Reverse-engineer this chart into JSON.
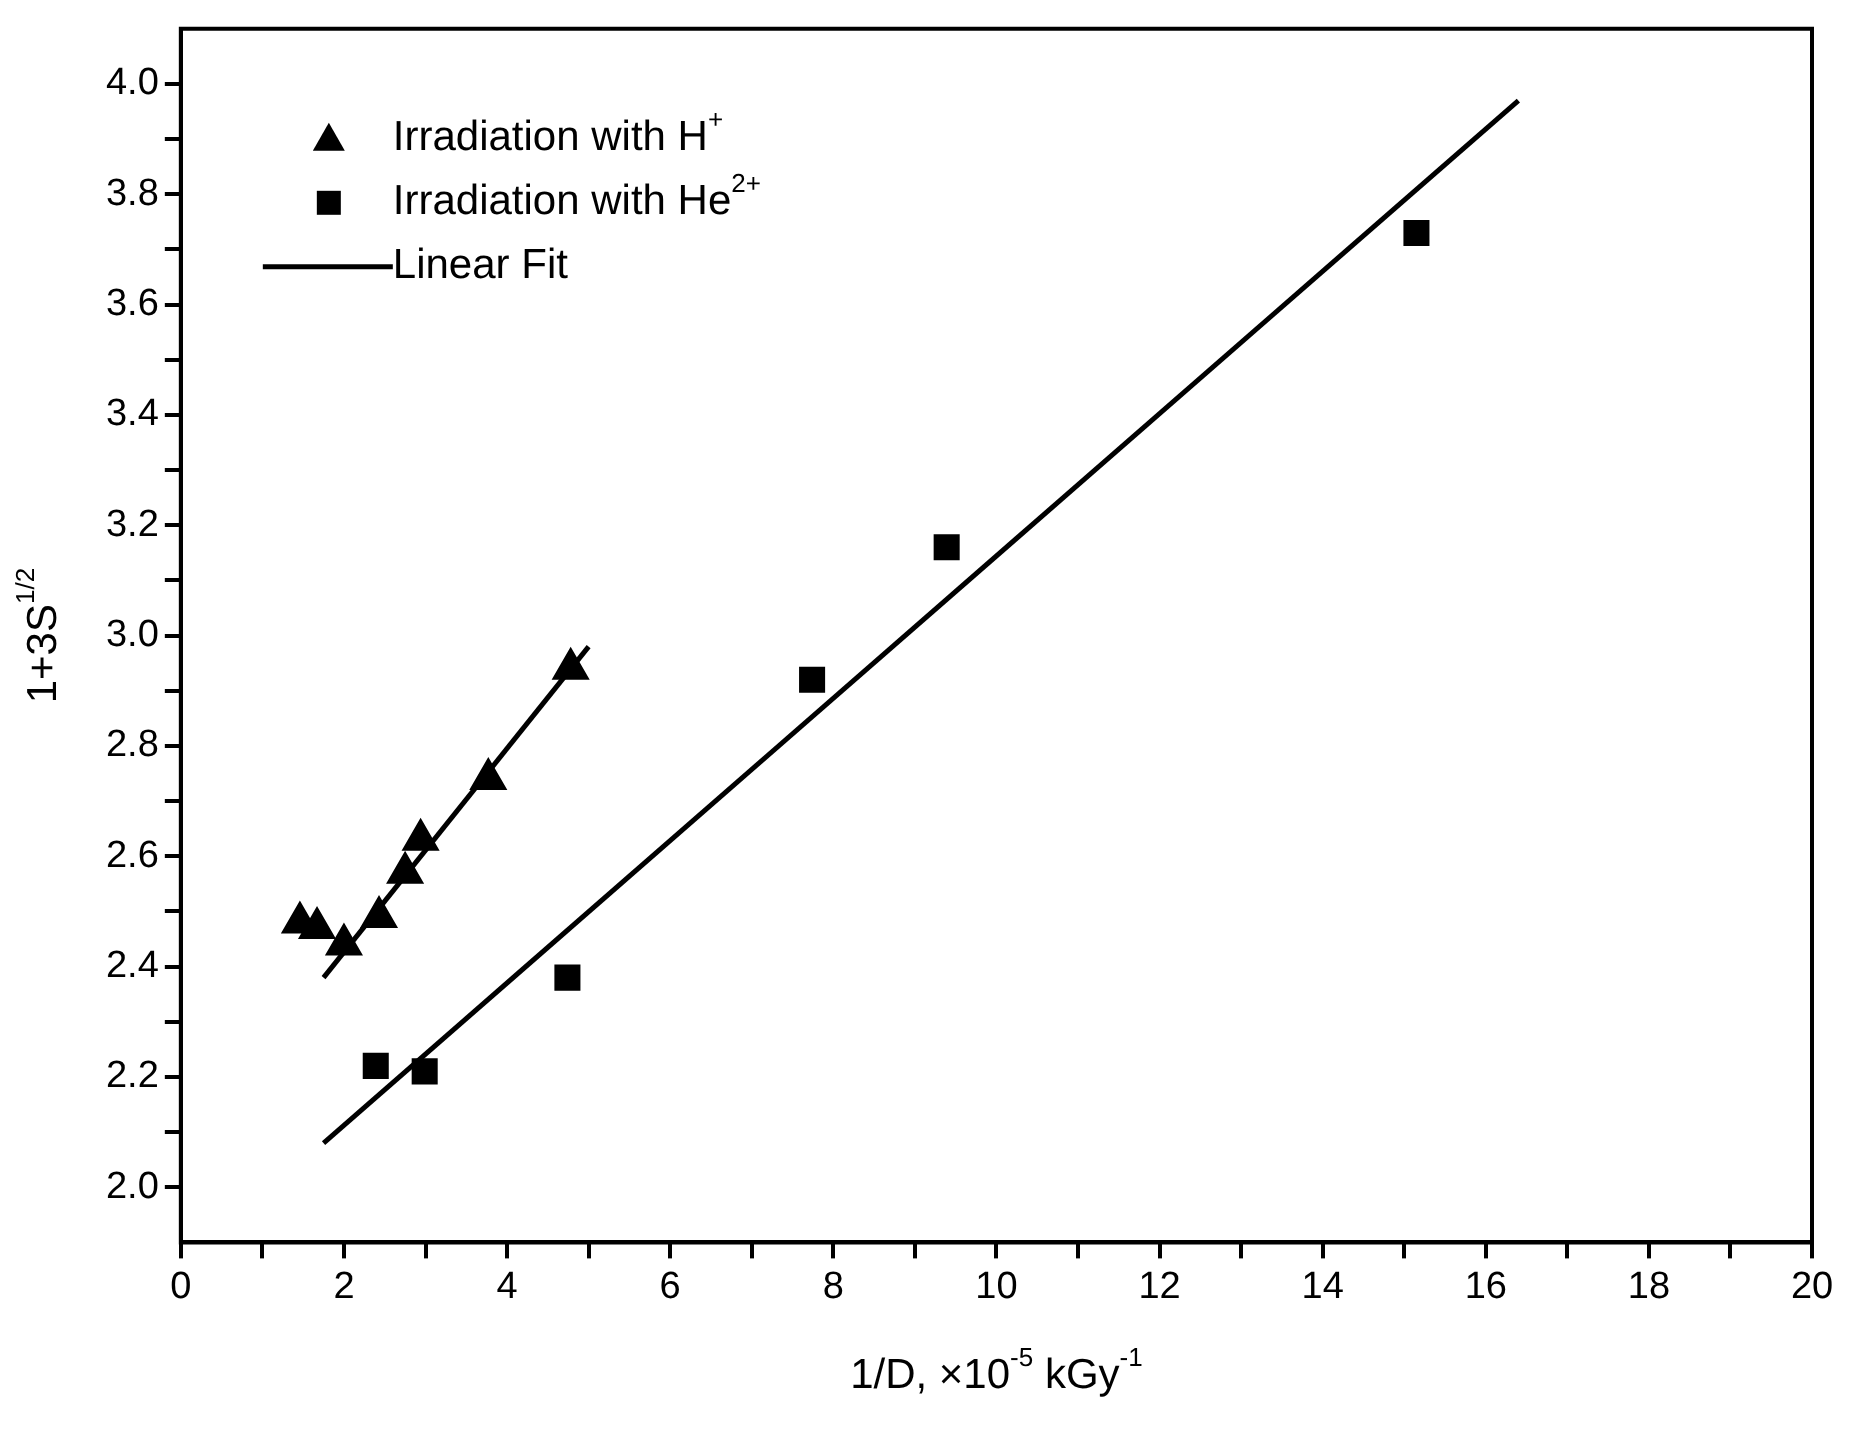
{
  "chart_data": {
    "type": "scatter",
    "xlabel": "1/D, ×10$^{-5}$ kGy$^{-1}$",
    "ylabel": "1+3S$^{1/2}$",
    "xlim": [
      0,
      20
    ],
    "ylim": [
      1.9,
      4.1
    ],
    "xticks": [
      0,
      {
        "value": 1,
        "label": null
      },
      2,
      {
        "value": 3,
        "label": null
      },
      4,
      {
        "value": 5,
        "label": null
      },
      6,
      {
        "value": 7,
        "label": null
      },
      8,
      {
        "value": 9,
        "label": null
      },
      10,
      {
        "value": 11,
        "label": null
      },
      12,
      {
        "value": 13,
        "label": null
      },
      14,
      {
        "value": 15,
        "label": null
      },
      16,
      {
        "value": 17,
        "label": null
      },
      18,
      {
        "value": 19,
        "label": null
      },
      20
    ],
    "yticks": [
      {
        "value": 2,
        "label": "2.0"
      },
      {
        "value": 2.1,
        "label": null
      },
      {
        "value": 2.2,
        "label": "2.2"
      },
      {
        "value": 2.3,
        "label": null
      },
      {
        "value": 2.4,
        "label": "2.4"
      },
      {
        "value": 2.5,
        "label": null
      },
      {
        "value": 2.6,
        "label": "2.6"
      },
      {
        "value": 2.7,
        "label": null
      },
      {
        "value": 2.8,
        "label": "2.8"
      },
      {
        "value": 2.9,
        "label": null
      },
      {
        "value": 3,
        "label": "3.0"
      },
      {
        "value": 3.1,
        "label": null
      },
      {
        "value": 3.2,
        "label": "3.2"
      },
      {
        "value": 3.3,
        "label": null
      },
      {
        "value": 3.4,
        "label": "3.4"
      },
      {
        "value": 3.5,
        "label": null
      },
      {
        "value": 3.6,
        "label": "3.6"
      },
      {
        "value": 3.7,
        "label": null
      },
      {
        "value": 3.8,
        "label": "3.8"
      },
      {
        "value": 3.9,
        "label": null
      },
      {
        "value": 4,
        "label": "4.0"
      }
    ],
    "grid": false,
    "legend": "top left",
    "series": [
      {
        "name": "Irradiation with H$^{+}$",
        "type": "scatter",
        "marker": "triangle",
        "color": "#000000",
        "x": [
          1.46,
          1.67,
          2.0,
          2.43,
          2.75,
          2.94,
          3.77,
          4.78
        ],
        "values": [
          2.48,
          2.47,
          2.44,
          2.49,
          2.57,
          2.63,
          2.74,
          2.94
        ]
      },
      {
        "name": "Irradiation with He$^{2+}$",
        "type": "scatter",
        "marker": "square",
        "color": "#000000",
        "x": [
          2.39,
          2.99,
          4.74,
          7.74,
          9.39,
          15.15
        ],
        "values": [
          2.22,
          2.21,
          2.38,
          2.92,
          3.16,
          3.73
        ]
      },
      {
        "name": "Linear Fit",
        "type": "line",
        "marker": "none",
        "line_style": "solid",
        "color": "#000000",
        "x": [
          1.75,
          5.0
        ],
        "values": [
          2.38,
          2.98
        ]
      },
      {
        "type": "line",
        "marker": "none",
        "line_style": "solid",
        "color": "#000000",
        "x": [
          1.75,
          16.4
        ],
        "values": [
          2.08,
          3.97
        ]
      }
    ]
  }
}
